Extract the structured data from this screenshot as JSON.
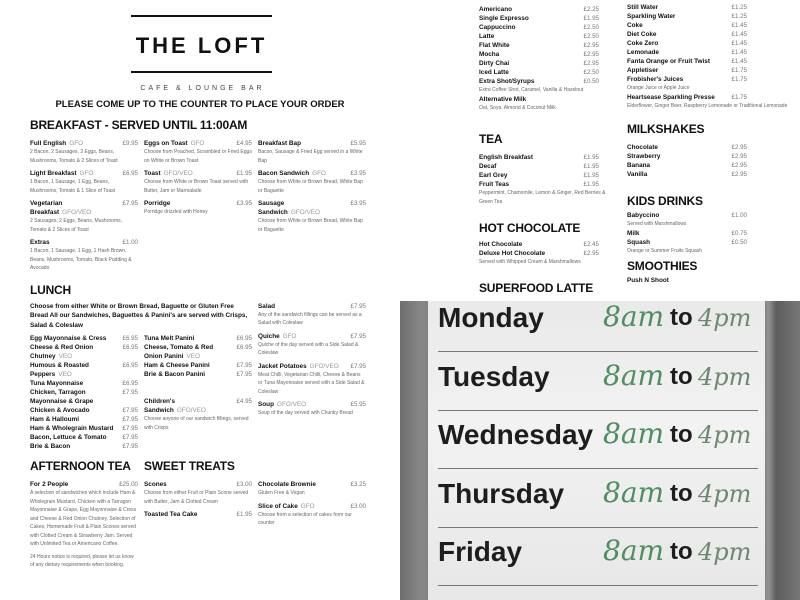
{
  "header": {
    "logo": "THE LOFT",
    "subtitle": "CAFE & LOUNGE BAR",
    "notice": "PLEASE COME UP TO THE COUNTER TO PLACE YOUR ORDER"
  },
  "breakfast": {
    "title": "BREAKFAST - SERVED UNTIL 11:00AM",
    "columns": [
      [
        {
          "name": "Full English",
          "tag": "GFO",
          "price": "£9.95",
          "desc": "2 Bacon, 2 Sausages, 2 Eggs, Beans, Mushrooms, Tomato & 2 Slices of Toast"
        },
        {
          "name": "Light Breakfast",
          "tag": "GFO",
          "price": "£6.95",
          "desc": "1 Bacon, 1 Sausage, 1 Egg, Beans, Mushrooms, Tomato & 1 Slice of Toast"
        },
        {
          "name": "Vegetarian Breakfast",
          "tag": "GFO/VEO",
          "price": "£7.95",
          "desc": "2 Sausages, 2 Eggs, Beans, Mushrooms, Tomato & 2 Slices of Toast"
        },
        {
          "name": "Extras",
          "tag": "",
          "price": "£1.00",
          "desc": "1 Bacon, 1 Sausage, 1 Egg, 1 Hash Brown, Beans, Mushrooms, Tomato, Black Pudding & Avocado"
        }
      ],
      [
        {
          "name": "Eggs on Toast",
          "tag": "GFO",
          "price": "£4.95",
          "desc": "Choose from Poached, Scrambled or Fried Eggs on White or Brown Toast"
        },
        {
          "name": "Toast",
          "tag": "GFO/VEO",
          "price": "£1.95",
          "desc": "Choose from White or Brown Toast served with Butter, Jam or Marmalade"
        },
        {
          "name": "Porridge",
          "tag": "",
          "price": "£3.95",
          "desc": "Porridge drizzled with Honey"
        }
      ],
      [
        {
          "name": "Breakfast Bap",
          "tag": "",
          "price": "£5.95",
          "desc": "Bacon, Sausage & Fried Egg served in a White Bap"
        },
        {
          "name": "Bacon Sandwich",
          "tag": "GFO",
          "price": "£3.95",
          "desc": "Choose from White or Brown Bread, White Bap or Baguette"
        },
        {
          "name": "Sausage Sandwich",
          "tag": "GFO/VEO",
          "price": "£3.95",
          "desc": "Choose from White or Brown Bread, White Bap or Baguette"
        }
      ]
    ]
  },
  "lunch": {
    "title": "LUNCH",
    "intro": "Choose from either White or Brown Bread, Baguette or Gluten Free Bread All our Sandwiches, Baguettes & Panini's are served with Crisps, Salad & Coleslaw",
    "columns": [
      [
        {
          "name": "Egg Mayonnaise & Cress",
          "tag": "",
          "price": "£6.95"
        },
        {
          "name": "Cheese & Red Onion Chutney",
          "tag": "VEO",
          "price": "£6.95"
        },
        {
          "name": "Humous & Roasted Peppers",
          "tag": "VEO",
          "price": "£6.95"
        },
        {
          "name": "Tuna Mayonnaise",
          "tag": "",
          "price": "£6.95"
        },
        {
          "name": "Chicken, Tarragon Mayonnaise & Grape",
          "tag": "",
          "price": "£7.95"
        },
        {
          "name": "Chicken & Avocado",
          "tag": "",
          "price": "£7.95"
        },
        {
          "name": "Ham & Halloumi",
          "tag": "",
          "price": "£7.95"
        },
        {
          "name": "Ham & Wholegrain Mustard",
          "tag": "",
          "price": "£7.95"
        },
        {
          "name": "Bacon, Lettuce & Tomato",
          "tag": "",
          "price": "£7.95"
        },
        {
          "name": "Brie & Bacon",
          "tag": "",
          "price": "£7.95"
        }
      ],
      [
        {
          "name": "Tuna Melt Panini",
          "tag": "",
          "price": "£6.95"
        },
        {
          "name": "Cheese, Tomato & Red Onion Panini",
          "tag": "VEO",
          "price": "£6.95"
        },
        {
          "name": "Ham & Cheese Panini",
          "tag": "",
          "price": "£7.95"
        },
        {
          "name": "Brie & Bacon Panini",
          "tag": "",
          "price": "£7.95"
        }
      ],
      [
        {
          "name": "Children's Sandwich",
          "tag": "GFO/VEO",
          "price": "£4.95",
          "desc": "Choose anyone of our sandwich fillings, served with Crisps"
        }
      ],
      [
        {
          "name": "Salad",
          "tag": "",
          "price": "£7.95",
          "desc": "Any of the sandwich fillings can be served as a Salad with Coleslaw"
        },
        {
          "name": "Quiche",
          "tag": "GFO",
          "price": "£7.95",
          "desc": "Quiche of the day served with a Side Salad & Coleslaw"
        },
        {
          "name": "Jacket Potatoes",
          "tag": "GFO/VEO",
          "price": "£7.95",
          "desc": "Meat Chilli, Vegetarian Chilli, Cheese & Beans or Tuna Mayonnaise served with a Side Salad & Coleslaw"
        },
        {
          "name": "Soup",
          "tag": "GFO/VEO",
          "price": "£5.95",
          "desc": "Soup of the day served with Chunky Bread"
        }
      ]
    ]
  },
  "afternoon_tea": {
    "title": "AFTERNOON TEA",
    "items": [
      {
        "name": "For 2 People",
        "tag": "",
        "price": "£25.00",
        "desc": "A selection of sandwiches which include Ham & Wholegrain Mustard, Chicken with a Tarragon Mayonnaise & Grape, Egg Mayonnaise & Cress and Cheese & Red Onion Chutney. Selection of Cakes, Homemade Fruit & Plain Scones served with Clotted Cream & Strawberry Jam. Served with Unlimited Tea or Americano Coffee."
      }
    ],
    "note": "24 Hours notice is required, please let us know of any dietary requirements when booking."
  },
  "sweet_treats": {
    "title": "SWEET TREATS",
    "columns": [
      [
        {
          "name": "Scones",
          "tag": "",
          "price": "£3.00",
          "desc": "Choose from either Fruit or Plain Scone served with Butter, Jam & Clotted Cream"
        },
        {
          "name": "Toasted Tea Cake",
          "tag": "",
          "price": "£1.95"
        }
      ],
      [
        {
          "name": "Chocolate Brownie",
          "tag": "",
          "price": "£3.25",
          "desc": "Gluten Free & Vegan"
        },
        {
          "name": "Slice of Cake",
          "tag": "GFO",
          "price": "£3.00",
          "desc": "Choose from a selection of cakes from our counter"
        }
      ]
    ]
  },
  "coffee": {
    "items": [
      {
        "name": "Americano",
        "price": "£2.25"
      },
      {
        "name": "Single Expresso",
        "price": "£1.95"
      },
      {
        "name": "Cappuccino",
        "price": "£2.50"
      },
      {
        "name": "Latte",
        "price": "£2.50"
      },
      {
        "name": "Flat White",
        "price": "£2.95"
      },
      {
        "name": "Mocha",
        "price": "£2.95"
      },
      {
        "name": "Dirty Chai",
        "price": "£2.95"
      },
      {
        "name": "Iced Latte",
        "price": "£2.50"
      },
      {
        "name": "Extra Shot/Syrups",
        "price": "£0.50",
        "desc": "Extra Coffee Shot, Caramel, Vanilla & Hazelnut"
      },
      {
        "name": "Alternative Milk",
        "price": "",
        "desc": "Oat, Soya, Almond & Coconut Milk"
      }
    ]
  },
  "soft_drinks": {
    "items": [
      {
        "name": "Still Water",
        "price": "£1.25"
      },
      {
        "name": "Sparkling Water",
        "price": "£1.25"
      },
      {
        "name": "Coke",
        "price": "£1.45"
      },
      {
        "name": "Diet Coke",
        "price": "£1.45"
      },
      {
        "name": "Coke Zero",
        "price": "£1.45"
      },
      {
        "name": "Lemonade",
        "price": "£1.45"
      },
      {
        "name": "Fanta Orange or Fruit Twist",
        "price": "£1.45"
      },
      {
        "name": "Appletiser",
        "price": "£1.75"
      },
      {
        "name": "Frobisher's Juices",
        "price": "£1.75",
        "desc": "Orange Juice or Apple Juice"
      },
      {
        "name": "Heartsease Sparkling Presse",
        "price": "£1.75",
        "desc": "Elderflower, Ginger Beer, Raspberry Lemonade or Traditional Lemonade"
      }
    ]
  },
  "tea": {
    "title": "TEA",
    "items": [
      {
        "name": "English Breakfast",
        "price": "£1.95"
      },
      {
        "name": "Decaf",
        "price": "£1.95"
      },
      {
        "name": "Earl Grey",
        "price": "£1.95"
      },
      {
        "name": "Fruit Teas",
        "price": "£1.95",
        "desc": "Peppermint, Chamomile, Lemon & Ginger, Red Berries & Green Tea"
      }
    ]
  },
  "hot_chocolate": {
    "title": "HOT CHOCOLATE",
    "items": [
      {
        "name": "Hot Chocolate",
        "price": "£2.45"
      },
      {
        "name": "Deluxe Hot Chocolate",
        "price": "£2.95",
        "desc": "Served with Whipped Cream & Marshmallows"
      }
    ]
  },
  "superfood": {
    "title": "SUPERFOOD LATTE"
  },
  "milkshakes": {
    "title": "MILKSHAKES",
    "items": [
      {
        "name": "Chocolate",
        "price": "£2.95"
      },
      {
        "name": "Strawberry",
        "price": "£2.95"
      },
      {
        "name": "Banana",
        "price": "£2.95"
      },
      {
        "name": "Vanilla",
        "price": "£2.95"
      }
    ]
  },
  "kids_drinks": {
    "title": "KIDS DRINKS",
    "items": [
      {
        "name": "Babyccino",
        "price": "£1.00",
        "desc": "Served with Marshmallows"
      },
      {
        "name": "Milk",
        "price": "£0.75"
      },
      {
        "name": "Squash",
        "price": "£0.50",
        "desc": "Orange or Summer Fruits Squash"
      }
    ]
  },
  "smoothies": {
    "title": "SMOOTHIES",
    "items": [
      {
        "name": "Push N Shoot",
        "price": ""
      }
    ]
  },
  "sign": {
    "rows": [
      {
        "day": "Monday",
        "open": "8am",
        "to": "to",
        "close": "4pm"
      },
      {
        "day": "Tuesday",
        "open": "8am",
        "to": "to",
        "close": "4pm"
      },
      {
        "day": "Wednesday",
        "open": "8am",
        "to": "to",
        "close": "4pm"
      },
      {
        "day": "Thursday",
        "open": "8am",
        "to": "to",
        "close": "4pm"
      },
      {
        "day": "Friday",
        "open": "8am",
        "to": "to",
        "close": "4pm"
      }
    ]
  }
}
